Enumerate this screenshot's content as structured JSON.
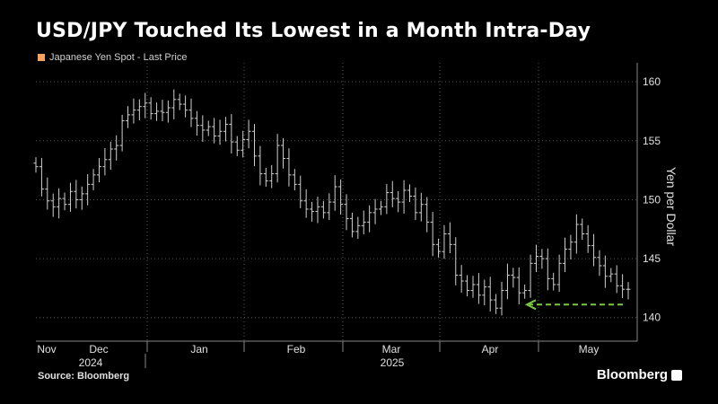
{
  "title": "USD/JPY Touched Its Lowest in a Month Intra-Day",
  "source": "Source: Bloomberg",
  "brand": "Bloomberg",
  "chart_data": {
    "type": "ohlc",
    "legend": "Japanese Yen Spot - Last Price",
    "legend_color": "#f4a460",
    "bar_color": "#cfcfcf",
    "ylabel": "Yen per Dollar",
    "ylim": [
      138,
      161
    ],
    "yticks": [
      140,
      145,
      150,
      155,
      160
    ],
    "grid": true,
    "x_month_labels": [
      "Nov",
      "Dec",
      "Jan",
      "Feb",
      "Mar",
      "Apr",
      "May"
    ],
    "x_year_labels": [
      "2024",
      "2025"
    ],
    "annotation": {
      "type": "dashed-arrow",
      "color": "#7ac943",
      "pointing": "left",
      "value": 141.1
    },
    "series": [
      {
        "values": [
          152.8,
          150.9,
          149.9,
          149.4,
          150.1,
          149.6,
          150.7,
          150.0,
          150.5,
          151.3,
          152.1,
          152.8,
          153.4,
          154.3,
          154.6,
          156.7,
          157.2,
          157.6,
          157.9,
          158.2,
          157.3,
          157.5,
          157.4,
          157.8,
          158.5,
          158.1,
          157.6,
          156.9,
          156.3,
          155.9,
          156.2,
          155.4,
          155.8,
          156.4,
          154.9,
          154.2,
          155.1,
          155.8,
          153.7,
          152.2,
          151.6,
          152.2,
          154.6,
          153.5,
          152.1,
          151.3,
          149.9,
          149.2,
          149.0,
          149.4,
          148.9,
          149.8,
          151.1,
          149.6,
          148.4,
          147.3,
          147.8,
          148.1,
          148.9,
          149.2,
          149.4,
          150.6,
          150.1,
          149.8,
          150.8,
          150.3,
          148.9,
          149.6,
          148.1,
          146.2,
          145.6,
          147.1,
          146.2,
          143.6,
          143.1,
          142.3,
          142.8,
          141.9,
          142.6,
          141.5,
          140.8,
          142.3,
          143.6,
          143.4,
          142.1,
          142.3,
          144.6,
          145.2,
          145.0,
          143.3,
          142.8,
          144.6,
          145.8,
          146.4,
          147.9,
          147.1,
          146.1,
          145.1,
          144.4,
          143.5,
          143.7,
          142.7,
          142.4,
          142.4
        ]
      }
    ]
  }
}
